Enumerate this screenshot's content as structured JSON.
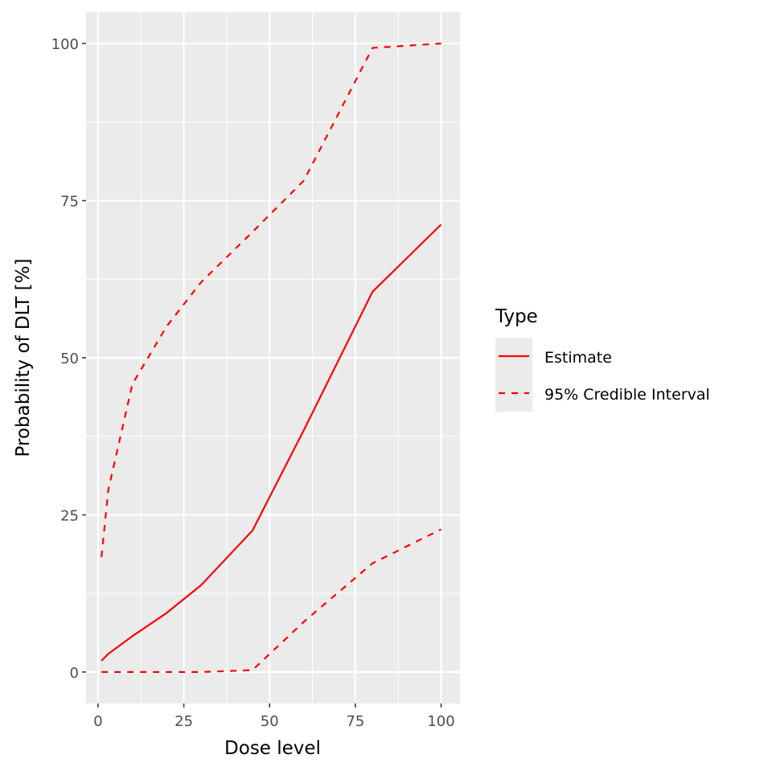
{
  "chart_data": {
    "type": "line",
    "title": "",
    "xlabel": "Dose level",
    "ylabel": "Probability of DLT [%]",
    "xlim": [
      -3.5,
      105.5
    ],
    "ylim": [
      -5,
      105
    ],
    "xticks": [
      0,
      25,
      50,
      75,
      100
    ],
    "yticks": [
      0,
      25,
      50,
      75,
      100
    ],
    "grid": true,
    "legend": {
      "title": "Type",
      "placement": "right"
    },
    "series": [
      {
        "name": "Estimate",
        "style": "solid",
        "color": "#FF0000",
        "x": [
          1,
          3,
          10,
          20,
          30,
          45,
          60,
          80,
          100
        ],
        "y": [
          1.8,
          2.9,
          5.7,
          9.4,
          13.8,
          22.5,
          38.5,
          60.5,
          71.2
        ]
      },
      {
        "name": "95% Credible Interval",
        "style": "dashed",
        "color": "#FF0000",
        "part": "upper",
        "x": [
          1,
          3,
          10,
          20,
          30,
          45,
          60,
          80,
          100
        ],
        "y": [
          18.3,
          29.0,
          45.8,
          55.0,
          62.0,
          70.0,
          78.2,
          99.3,
          100
        ]
      },
      {
        "name": "95% Credible Interval",
        "style": "dashed",
        "color": "#FF0000",
        "part": "lower",
        "x": [
          1,
          3,
          10,
          20,
          30,
          45,
          60,
          80,
          100
        ],
        "y": [
          0,
          0,
          0,
          0,
          0,
          0.3,
          8.0,
          17.3,
          22.7
        ]
      }
    ]
  }
}
